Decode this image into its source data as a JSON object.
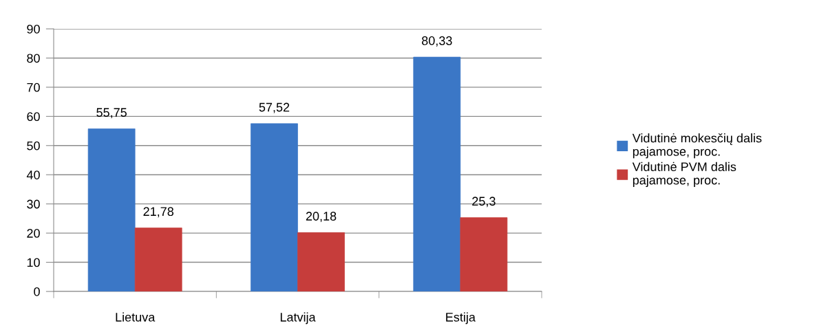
{
  "chart_data": {
    "type": "bar",
    "categories": [
      "Lietuva",
      "Latvija",
      "Estija"
    ],
    "series": [
      {
        "name": "Vidutinė mokesčių dalis\npajamose, proc.",
        "color": "#3b77c6",
        "values": [
          55.75,
          57.52,
          80.33
        ],
        "value_labels": [
          "55,75",
          "57,52",
          "80,33"
        ]
      },
      {
        "name": "Vidutinė PVM dalis\npajamose, proc.",
        "color": "#c63d3b",
        "values": [
          21.78,
          20.18,
          25.3
        ],
        "value_labels": [
          "21,78",
          "20,18",
          "25,3"
        ]
      }
    ],
    "ylim": [
      0,
      90
    ],
    "yticks": [
      0,
      10,
      20,
      30,
      40,
      50,
      60,
      70,
      80,
      90
    ],
    "grid": "y",
    "legend": "right"
  }
}
